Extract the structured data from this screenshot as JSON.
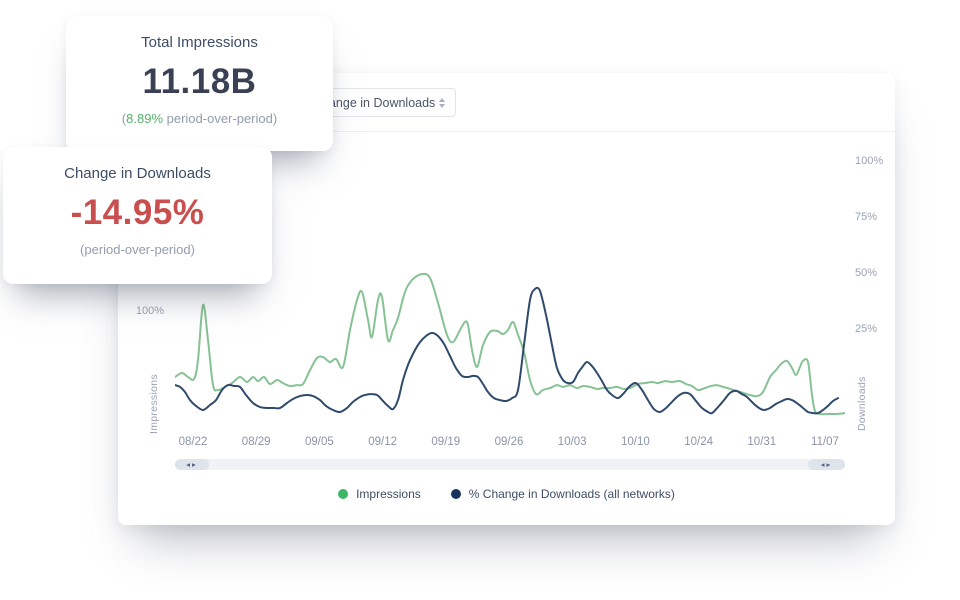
{
  "cards": {
    "impressions": {
      "title": "Total Impressions",
      "value": "11.18B",
      "sub_prefix": "(",
      "sub_highlight": "8.89%",
      "sub_rest": " period-over-period)"
    },
    "downloads": {
      "title": "Change in Downloads",
      "value": "-14.95%",
      "sub": "(period-over-period)"
    }
  },
  "toolbar": {
    "metric_select_value": "Change in Downloads"
  },
  "chart": {
    "y_left_tick": "100%",
    "y_left_axis_label": "Impressions",
    "y_right_axis_label": "Downloads",
    "x_labels": [
      "08/22",
      "08/29",
      "09/05",
      "09/12",
      "09/19",
      "09/26",
      "10/03",
      "10/10",
      "10/24",
      "10/31",
      "11/07"
    ],
    "legend": [
      {
        "label": "Impressions",
        "color": "#3cb664"
      },
      {
        "label": "% Change in Downloads (all networks)",
        "color": "#16345c"
      }
    ],
    "scrollbar_arrows": "◂▸"
  },
  "chart_data": {
    "type": "line",
    "title": "",
    "x_unit": "plot px 0-670; weekly category ticks per x_labels",
    "y_unit": "percent on right (Downloads) axis; 0% baseline, 25% per gridline",
    "ylim_right": [
      -20,
      108
    ],
    "y_right_ticks": [
      100,
      75,
      50,
      25
    ],
    "grid": false,
    "legend_position": "bottom",
    "series": [
      {
        "name": "Impressions",
        "axis": "left",
        "color": "#86c294",
        "points": [
          [
            0,
            4
          ],
          [
            7,
            5.8
          ],
          [
            13,
            4
          ],
          [
            19,
            3.1
          ],
          [
            23,
            11.6
          ],
          [
            28,
            36.2
          ],
          [
            33,
            20.5
          ],
          [
            38,
            0.4
          ],
          [
            43,
            -1.8
          ],
          [
            50,
            -0.4
          ],
          [
            57,
            1.3
          ],
          [
            65,
            4
          ],
          [
            72,
            1.8
          ],
          [
            78,
            4
          ],
          [
            83,
            2.2
          ],
          [
            89,
            4
          ],
          [
            95,
            0.9
          ],
          [
            102,
            2.7
          ],
          [
            108,
            1.3
          ],
          [
            115,
            0
          ],
          [
            122,
            0.4
          ],
          [
            128,
            0.9
          ],
          [
            135,
            7.1
          ],
          [
            142,
            12.5
          ],
          [
            148,
            12.9
          ],
          [
            155,
            10.7
          ],
          [
            161,
            12.1
          ],
          [
            168,
            8.5
          ],
          [
            175,
            25
          ],
          [
            182,
            38.4
          ],
          [
            187,
            42
          ],
          [
            193,
            29.5
          ],
          [
            197,
            21.9
          ],
          [
            203,
            38.4
          ],
          [
            207,
            39.7
          ],
          [
            213,
            20.5
          ],
          [
            218,
            25
          ],
          [
            223,
            30.4
          ],
          [
            230,
            42
          ],
          [
            237,
            47.3
          ],
          [
            247,
            50
          ],
          [
            255,
            48.2
          ],
          [
            263,
            37.1
          ],
          [
            272,
            22.8
          ],
          [
            278,
            19.6
          ],
          [
            285,
            25
          ],
          [
            290,
            28.6
          ],
          [
            293,
            27.2
          ],
          [
            297,
            16.1
          ],
          [
            302,
            8.5
          ],
          [
            308,
            18.3
          ],
          [
            315,
            24.1
          ],
          [
            322,
            24.6
          ],
          [
            328,
            23.2
          ],
          [
            333,
            25
          ],
          [
            338,
            28.6
          ],
          [
            343,
            22.8
          ],
          [
            349,
            15.2
          ],
          [
            355,
            2.7
          ],
          [
            361,
            -3.6
          ],
          [
            368,
            -1.8
          ],
          [
            375,
            -0.9
          ],
          [
            382,
            0.4
          ],
          [
            388,
            -0.4
          ],
          [
            395,
            0.4
          ],
          [
            402,
            -0.9
          ],
          [
            408,
            0
          ],
          [
            415,
            -0.4
          ],
          [
            422,
            -1.3
          ],
          [
            428,
            -0.9
          ],
          [
            435,
            -0.9
          ],
          [
            442,
            -0.4
          ],
          [
            448,
            -1.3
          ],
          [
            455,
            -0.9
          ],
          [
            463,
            0.9
          ],
          [
            470,
            1.3
          ],
          [
            477,
            1.8
          ],
          [
            483,
            1.3
          ],
          [
            490,
            2.2
          ],
          [
            497,
            1.8
          ],
          [
            505,
            2.2
          ],
          [
            511,
            0.9
          ],
          [
            517,
            0
          ],
          [
            523,
            -1.8
          ],
          [
            530,
            -0.9
          ],
          [
            536,
            0
          ],
          [
            542,
            0.4
          ],
          [
            548,
            -0.4
          ],
          [
            555,
            -1.3
          ],
          [
            562,
            -2.2
          ],
          [
            568,
            -3.1
          ],
          [
            575,
            -4
          ],
          [
            582,
            -4.5
          ],
          [
            588,
            -2.7
          ],
          [
            595,
            4
          ],
          [
            601,
            7.1
          ],
          [
            606,
            9.8
          ],
          [
            612,
            11.2
          ],
          [
            617,
            8
          ],
          [
            621,
            4.9
          ],
          [
            625,
            8.5
          ],
          [
            628,
            11.2
          ],
          [
            633,
            10.7
          ],
          [
            637,
            -4
          ],
          [
            640,
            -11.2
          ],
          [
            645,
            -12.5
          ],
          [
            653,
            -12.5
          ],
          [
            661,
            -12.5
          ],
          [
            670,
            -12.1
          ]
        ]
      },
      {
        "name": "% Change in Downloads (all networks)",
        "axis": "right",
        "color": "#2f4a6b",
        "points": [
          [
            0,
            0.4
          ],
          [
            5,
            -0.4
          ],
          [
            10,
            -2.7
          ],
          [
            15,
            -6.3
          ],
          [
            21,
            -8.9
          ],
          [
            28,
            -10.7
          ],
          [
            35,
            -8.5
          ],
          [
            41,
            -6.3
          ],
          [
            47,
            -1.8
          ],
          [
            53,
            0.4
          ],
          [
            59,
            0
          ],
          [
            65,
            -0.4
          ],
          [
            71,
            -4
          ],
          [
            78,
            -7.6
          ],
          [
            85,
            -9.4
          ],
          [
            92,
            -9.8
          ],
          [
            99,
            -9.8
          ],
          [
            105,
            -9.8
          ],
          [
            112,
            -7.6
          ],
          [
            118,
            -5.8
          ],
          [
            125,
            -4.5
          ],
          [
            132,
            -4
          ],
          [
            138,
            -4.5
          ],
          [
            145,
            -6.3
          ],
          [
            151,
            -8.9
          ],
          [
            158,
            -10.7
          ],
          [
            165,
            -11.6
          ],
          [
            172,
            -9.8
          ],
          [
            178,
            -7.1
          ],
          [
            185,
            -4.9
          ],
          [
            190,
            -4
          ],
          [
            195,
            -3.6
          ],
          [
            202,
            -4
          ],
          [
            208,
            -6.7
          ],
          [
            213,
            -8.9
          ],
          [
            218,
            -10.3
          ],
          [
            223,
            -6.3
          ],
          [
            228,
            2.7
          ],
          [
            233,
            9.4
          ],
          [
            239,
            15.2
          ],
          [
            245,
            19.6
          ],
          [
            251,
            22.3
          ],
          [
            257,
            23.7
          ],
          [
            263,
            22.3
          ],
          [
            269,
            18.8
          ],
          [
            275,
            13.4
          ],
          [
            281,
            8
          ],
          [
            287,
            4.5
          ],
          [
            293,
            4
          ],
          [
            298,
            4.5
          ],
          [
            303,
            4
          ],
          [
            308,
            0.9
          ],
          [
            313,
            -2.7
          ],
          [
            319,
            -5.4
          ],
          [
            325,
            -6.3
          ],
          [
            331,
            -6.7
          ],
          [
            337,
            -5.4
          ],
          [
            343,
            -1.8
          ],
          [
            349,
            18.3
          ],
          [
            355,
            38.4
          ],
          [
            360,
            43.3
          ],
          [
            365,
            42.4
          ],
          [
            371,
            31.7
          ],
          [
            377,
            18.3
          ],
          [
            382,
            8
          ],
          [
            388,
            2.7
          ],
          [
            393,
            1.3
          ],
          [
            398,
            1.8
          ],
          [
            403,
            5.8
          ],
          [
            408,
            8.9
          ],
          [
            412,
            10.7
          ],
          [
            417,
            8.9
          ],
          [
            422,
            5.8
          ],
          [
            427,
            2.2
          ],
          [
            432,
            -1.8
          ],
          [
            437,
            -4
          ],
          [
            443,
            -5.4
          ],
          [
            449,
            -3.1
          ],
          [
            455,
            0
          ],
          [
            461,
            1.3
          ],
          [
            467,
            -1.8
          ],
          [
            473,
            -6.3
          ],
          [
            479,
            -10.3
          ],
          [
            485,
            -11.6
          ],
          [
            491,
            -9.8
          ],
          [
            497,
            -7.1
          ],
          [
            503,
            -4.5
          ],
          [
            509,
            -3.1
          ],
          [
            515,
            -3.6
          ],
          [
            521,
            -6.7
          ],
          [
            527,
            -9.8
          ],
          [
            533,
            -11.6
          ],
          [
            537,
            -12.1
          ],
          [
            543,
            -9.4
          ],
          [
            549,
            -6.3
          ],
          [
            555,
            -3.1
          ],
          [
            561,
            -2.2
          ],
          [
            567,
            -3.6
          ],
          [
            572,
            -4.9
          ],
          [
            578,
            -7.6
          ],
          [
            584,
            -9.8
          ],
          [
            589,
            -10.7
          ],
          [
            595,
            -9.8
          ],
          [
            601,
            -8
          ],
          [
            607,
            -6.7
          ],
          [
            612,
            -5.8
          ],
          [
            617,
            -6.3
          ],
          [
            623,
            -8
          ],
          [
            628,
            -9.8
          ],
          [
            633,
            -11.6
          ],
          [
            638,
            -12.1
          ],
          [
            643,
            -12.1
          ],
          [
            648,
            -10.7
          ],
          [
            653,
            -8.9
          ],
          [
            658,
            -6.7
          ],
          [
            663,
            -5.4
          ]
        ]
      }
    ]
  }
}
